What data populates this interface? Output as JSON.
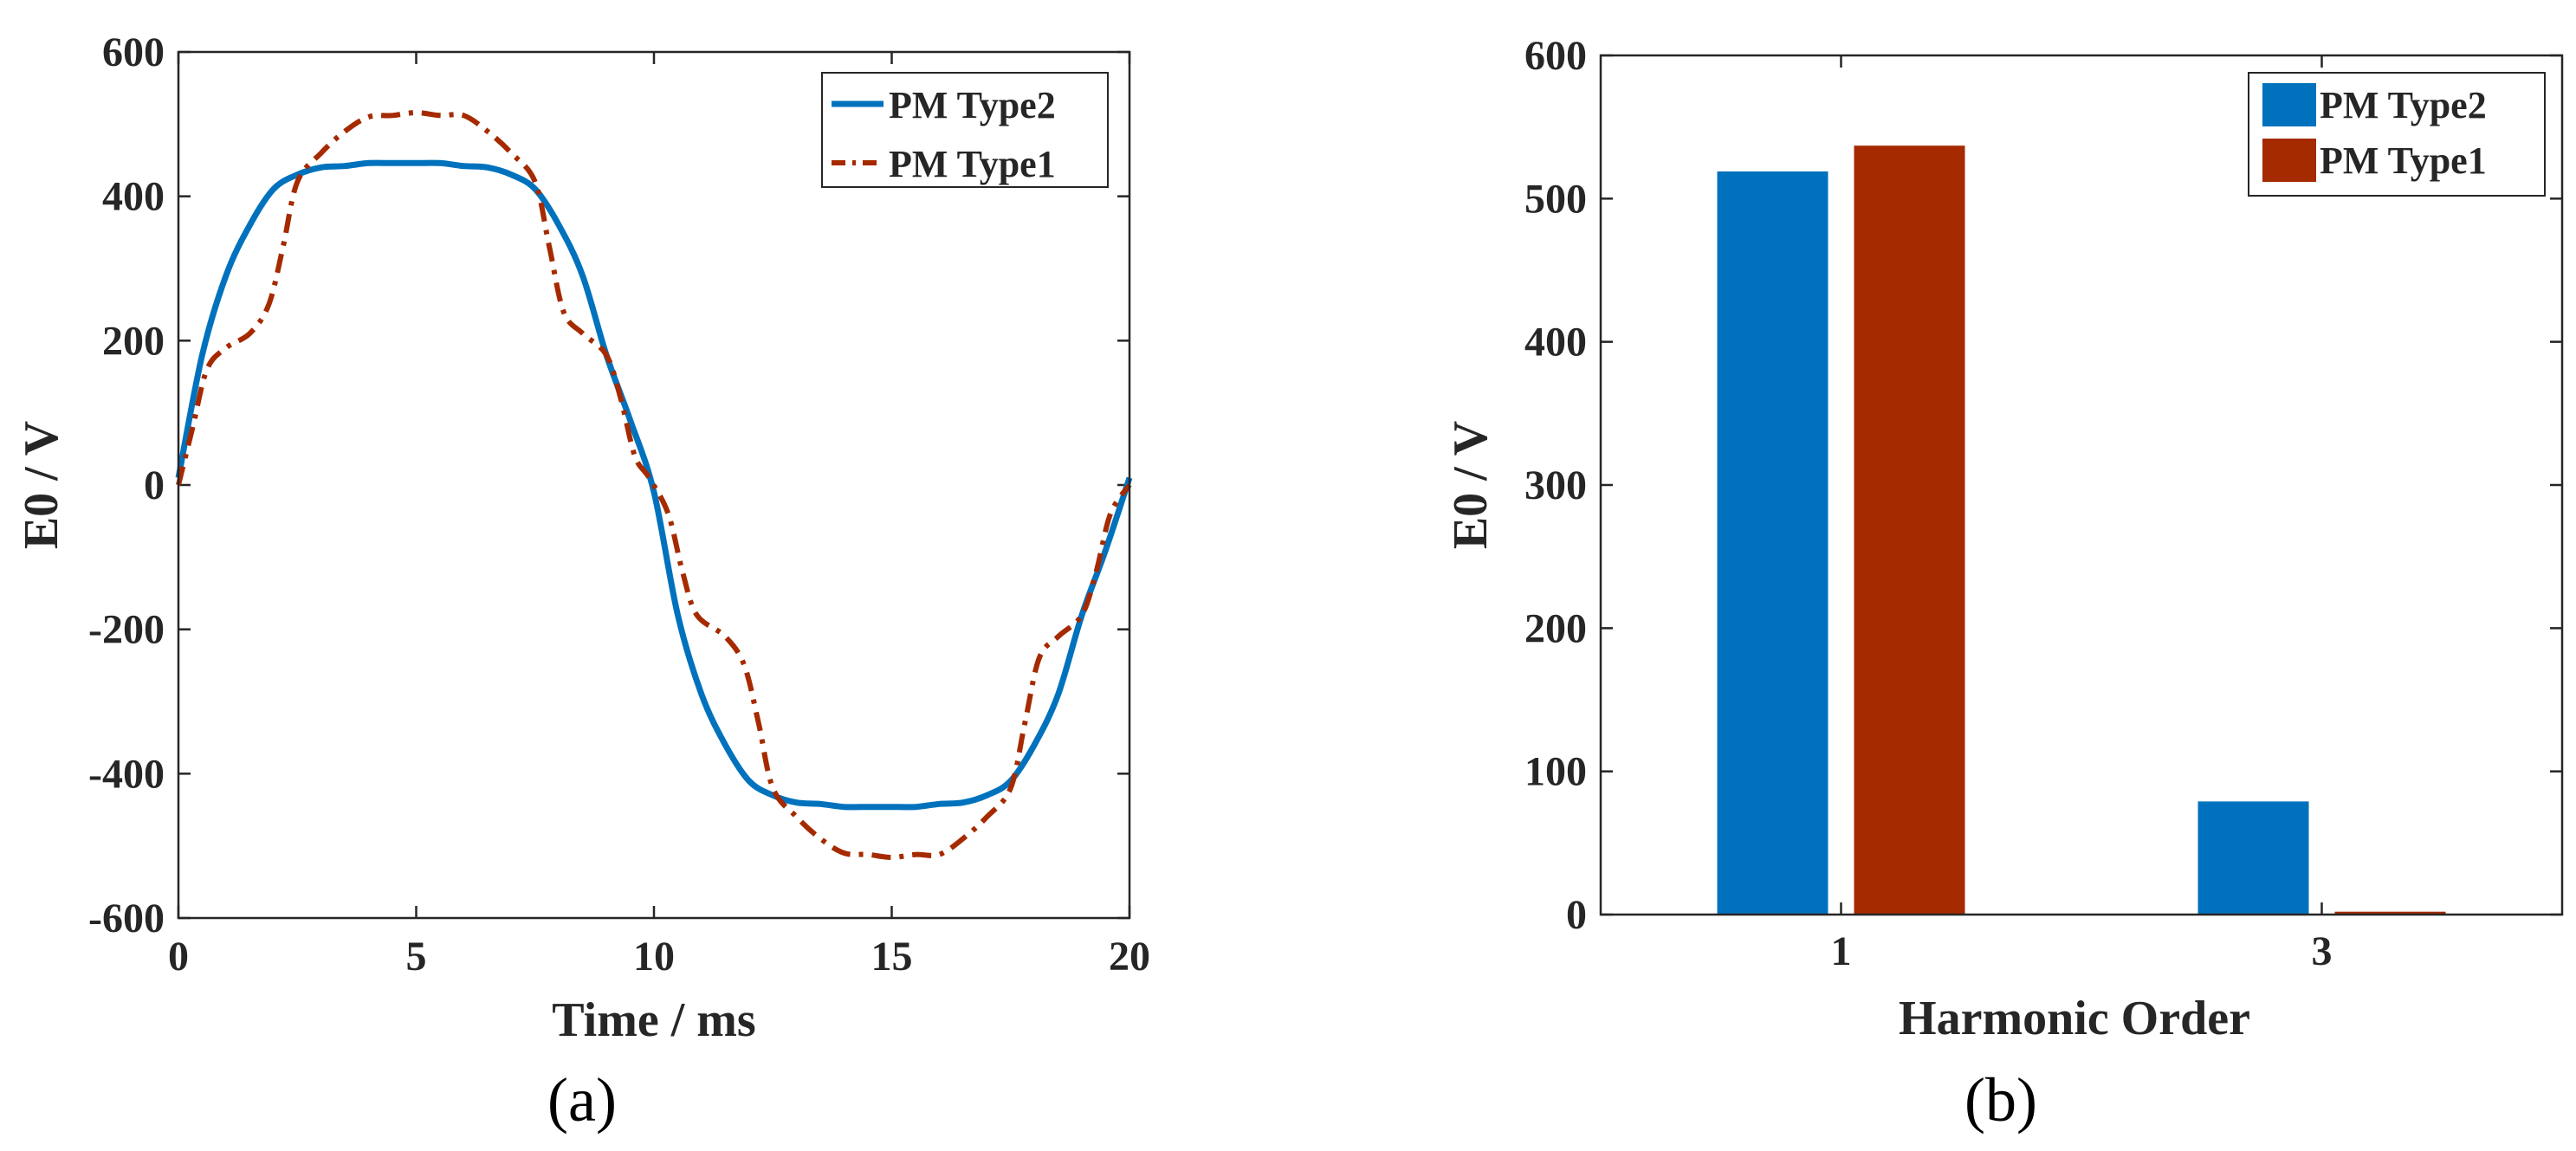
{
  "chart_data": [
    {
      "type": "line",
      "panel_label": "(a)",
      "xlabel": "Time / ms",
      "ylabel": "E0 / V",
      "xlim": [
        0,
        20
      ],
      "ylim": [
        -600,
        600
      ],
      "xticks": [
        0,
        5,
        10,
        15,
        20
      ],
      "xtick_labels": [
        "0",
        "5",
        "10",
        "15",
        "20"
      ],
      "yticks": [
        -600,
        -400,
        -200,
        0,
        200,
        400,
        600
      ],
      "ytick_labels": [
        "-600",
        "-400",
        "-200",
        "0",
        "200",
        "400",
        "600"
      ],
      "legend_position": "top-right",
      "series": [
        {
          "name": "PM Type2",
          "color": "#0072BD",
          "style": "solid",
          "x": [
            0,
            0.5,
            1,
            1.5,
            2,
            2.5,
            3,
            3.5,
            4,
            4.5,
            5,
            5.5,
            6,
            6.5,
            7,
            7.5,
            8,
            8.5,
            9,
            9.5,
            10,
            10.5,
            11,
            11.5,
            12,
            12.5,
            13,
            13.5,
            14,
            14.5,
            15,
            15.5,
            16,
            16.5,
            17,
            17.5,
            18,
            18.5,
            19,
            19.5,
            20
          ],
          "y": [
            10,
            180,
            290,
            360,
            410,
            430,
            440,
            442,
            446,
            446,
            446,
            446,
            442,
            440,
            430,
            410,
            360,
            290,
            180,
            90,
            -10,
            -180,
            -290,
            -360,
            -410,
            -430,
            -440,
            -442,
            -446,
            -446,
            -446,
            -446,
            -442,
            -440,
            -430,
            -410,
            -360,
            -290,
            -180,
            -90,
            10
          ]
        },
        {
          "name": "PM Type1",
          "color": "#A52A00",
          "style": "dashdot",
          "x": [
            0,
            0.3,
            0.6,
            1,
            1.5,
            1.9,
            2.2,
            2.5,
            3,
            3.5,
            4,
            4.5,
            5,
            5.5,
            6,
            6.5,
            7,
            7.5,
            7.8,
            8.1,
            8.5,
            9,
            9.3,
            9.6,
            9.9,
            10.3,
            10.6,
            10.9,
            11.5,
            11.9,
            12.2,
            12.5,
            13,
            13.5,
            14,
            14.5,
            15,
            15.5,
            16,
            16.5,
            17,
            17.5,
            17.8,
            18.1,
            18.5,
            19,
            19.3,
            19.6,
            20
          ],
          "y": [
            0,
            80,
            160,
            190,
            210,
            250,
            330,
            420,
            460,
            490,
            510,
            512,
            516,
            512,
            512,
            490,
            460,
            420,
            330,
            240,
            210,
            180,
            120,
            40,
            10,
            -40,
            -120,
            -180,
            -210,
            -250,
            -330,
            -420,
            -460,
            -490,
            -510,
            -512,
            -516,
            -512,
            -512,
            -490,
            -460,
            -420,
            -330,
            -240,
            -210,
            -180,
            -120,
            -40,
            0
          ]
        }
      ]
    },
    {
      "type": "bar",
      "panel_label": "(b)",
      "xlabel": "Harmonic Order",
      "ylabel": "E0 / V",
      "categories": [
        "1",
        "3"
      ],
      "ylim": [
        0,
        600
      ],
      "yticks": [
        0,
        100,
        200,
        300,
        400,
        500,
        600
      ],
      "ytick_labels": [
        "0",
        "100",
        "200",
        "300",
        "400",
        "500",
        "600"
      ],
      "legend_position": "top-right",
      "series": [
        {
          "name": "PM Type2",
          "color": "#0072BD",
          "values": [
            519,
            79
          ]
        },
        {
          "name": "PM Type1",
          "color": "#A52A00",
          "values": [
            537,
            2
          ]
        }
      ]
    }
  ]
}
